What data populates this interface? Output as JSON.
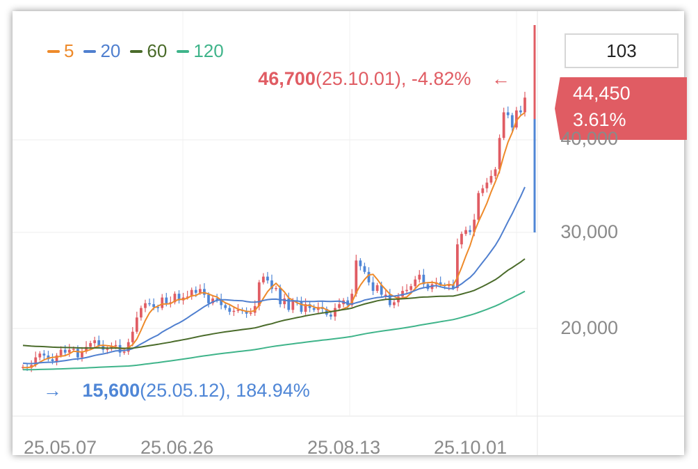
{
  "legend": [
    {
      "label": "5",
      "color": "#ee8a2a"
    },
    {
      "label": "20",
      "color": "#4f7fcf"
    },
    {
      "label": "60",
      "color": "#4a6b2a"
    },
    {
      "label": "120",
      "color": "#3fb48a"
    }
  ],
  "period_count": "103",
  "current": {
    "price": "44,450",
    "change": "3.61%"
  },
  "high": {
    "price": "46,700",
    "detail": "(25.10.01), -4.82%",
    "arrow": "←"
  },
  "low": {
    "price": "15,600",
    "detail": "(25.05.12), 184.94%",
    "arrow": "→"
  },
  "chart_data": {
    "type": "candlestick",
    "x_ticks": [
      "25.05.07",
      "25.06.26",
      "25.08.13",
      "25.10.01"
    ],
    "y_ticks": [
      "40,000",
      "30,000",
      "20,000"
    ],
    "ylim": [
      16000,
      50000
    ],
    "colors": {
      "up": "#e05c63",
      "down": "#4f86d6"
    },
    "closes": [
      16100,
      16000,
      16300,
      17100,
      17500,
      17300,
      16900,
      16700,
      17300,
      17900,
      17600,
      17900,
      18000,
      17100,
      17700,
      18200,
      18600,
      18900,
      18300,
      17900,
      18000,
      18300,
      18400,
      17600,
      17700,
      18700,
      19800,
      21300,
      22300,
      22800,
      22700,
      22400,
      22300,
      23400,
      22800,
      22900,
      23800,
      23100,
      23400,
      23500,
      24200,
      23900,
      24300,
      23700,
      22800,
      23300,
      23200,
      22600,
      22300,
      21900,
      22000,
      22100,
      22000,
      21700,
      21800,
      22500,
      25000,
      25600,
      25200,
      24300,
      24400,
      22700,
      23300,
      22100,
      23100,
      23000,
      21900,
      22700,
      22300,
      22100,
      22400,
      22200,
      21600,
      21400,
      22300,
      22700,
      23100,
      22600,
      23800,
      27300,
      26700,
      26100,
      25000,
      24100,
      24700,
      23700,
      23700,
      22600,
      22900,
      23500,
      24100,
      24200,
      24600,
      25300,
      25800,
      24800,
      24300,
      24800,
      25000,
      24700,
      24600,
      24800,
      24400,
      29000,
      30100,
      30500,
      30300,
      31600,
      34400,
      34900,
      35500,
      36200,
      36900,
      40200,
      42900,
      42600,
      41300,
      43100,
      42900,
      44450
    ]
  }
}
